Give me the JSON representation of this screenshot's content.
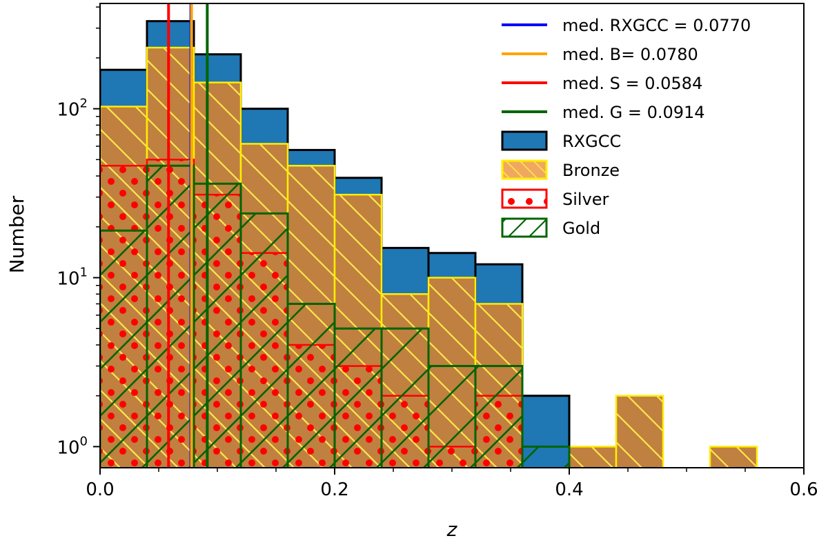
{
  "chart_data": {
    "type": "histogram",
    "xlabel": "z",
    "ylabel": "Number",
    "xlim": [
      0.0,
      0.6
    ],
    "ylim": [
      0.75,
      420
    ],
    "yscale": "log",
    "x_ticks": [
      0.0,
      0.2,
      0.4,
      0.6
    ],
    "x_tick_labels": [
      "0.0",
      "0.2",
      "0.4",
      "0.6"
    ],
    "y_ticks": [
      1,
      10,
      100
    ],
    "y_tick_labels": [
      {
        "base": "10",
        "exp": "0"
      },
      {
        "base": "10",
        "exp": "1"
      },
      {
        "base": "10",
        "exp": "2"
      }
    ],
    "bin_edges": [
      0.0,
      0.04,
      0.08,
      0.12,
      0.16,
      0.2,
      0.24,
      0.28,
      0.32,
      0.36,
      0.4,
      0.44,
      0.48,
      0.52,
      0.56
    ],
    "series": [
      {
        "name": "RXGCC",
        "fill": "#1f77b4",
        "edge": "#000000",
        "values": [
          170,
          330,
          210,
          100,
          57,
          39,
          15,
          14,
          12,
          2,
          0,
          0,
          0,
          0
        ]
      },
      {
        "name": "Bronze",
        "fill": "#c08040",
        "edge": "#ffee00",
        "hatch": "backslash",
        "values": [
          103,
          230,
          143,
          62,
          46,
          31,
          8,
          10,
          7,
          0,
          1,
          2,
          0,
          1
        ]
      },
      {
        "name": "Silver",
        "fill": "none",
        "edge": "#ff0000",
        "hatch": "dots",
        "values": [
          46,
          50,
          31,
          14,
          4,
          3,
          2,
          1,
          2,
          0,
          0,
          0,
          0,
          0
        ]
      },
      {
        "name": "Gold",
        "fill": "none",
        "edge": "#006400",
        "hatch": "slash",
        "values": [
          19,
          46,
          36,
          24,
          7,
          5,
          5,
          3,
          3,
          1,
          0,
          0,
          0,
          0
        ]
      }
    ],
    "median_lines": [
      {
        "label": "med. RXGCC = 0.0770",
        "x": 0.077,
        "color": "#0000ff"
      },
      {
        "label": "med. B= 0.0780",
        "x": 0.078,
        "color": "#ffa500"
      },
      {
        "label": "med. S = 0.0584",
        "x": 0.0584,
        "color": "#ff0000"
      },
      {
        "label": "med. G = 0.0914",
        "x": 0.0914,
        "color": "#006400"
      }
    ],
    "legend": {
      "placement": "top-right",
      "entries": [
        {
          "kind": "line",
          "label": "med. RXGCC = 0.0770",
          "color": "#0000ff"
        },
        {
          "kind": "line",
          "label": "med. B= 0.0780",
          "color": "#ffa500"
        },
        {
          "kind": "line",
          "label": "med. S = 0.0584",
          "color": "#ff0000"
        },
        {
          "kind": "line",
          "label": "med. G = 0.0914",
          "color": "#006400"
        },
        {
          "kind": "patch",
          "label": "RXGCC",
          "fill": "#1f77b4",
          "edge": "#000000",
          "hatch": "none"
        },
        {
          "kind": "patch",
          "label": "Bronze",
          "fill": "#f0a860",
          "edge": "#ffee00",
          "hatch": "backslash"
        },
        {
          "kind": "patch",
          "label": "Silver",
          "fill": "#ffffff",
          "edge": "#ff0000",
          "hatch": "dots"
        },
        {
          "kind": "patch",
          "label": "Gold",
          "fill": "#ffffff",
          "edge": "#006400",
          "hatch": "slash"
        }
      ]
    }
  }
}
